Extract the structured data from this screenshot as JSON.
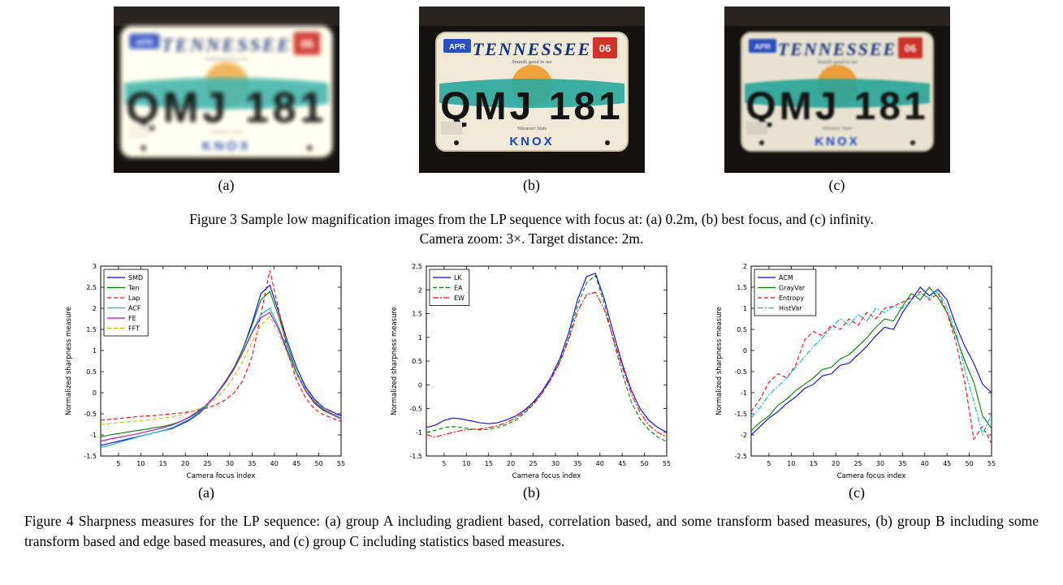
{
  "plate": {
    "month": "APR",
    "state": "TENNESSEE",
    "slogan": "Sounds good to me",
    "number": "QMJ 181",
    "volunteer": "Volunteer State",
    "county": "KNOX",
    "year": "06"
  },
  "figure3": {
    "sublabels": [
      "(a)",
      "(b)",
      "(c)"
    ],
    "caption_line1": "Figure 3 Sample low magnification images from the LP sequence with focus at: (a) 0.2m, (b) best focus, and (c) infinity.",
    "caption_line2": "Camera zoom: 3×.  Target distance: 2m."
  },
  "figure4": {
    "sublabels": [
      "(a)",
      "(b)",
      "(c)"
    ],
    "caption": "Figure 4 Sharpness measures for the LP sequence: (a) group A including gradient based, correlation based, and some transform based measures, (b) group B including some transform based and edge based measures, and (c) group C including statistics based measures."
  },
  "colors": {
    "plate_blue": "#16337f",
    "sticker_blue": "#2b4fc0",
    "sticker_red": "#d23329",
    "swoosh_teal": "#2da89e",
    "sun_orange": "#f0a23b"
  },
  "chart_data": [
    {
      "type": "line",
      "xlabel": "Camera focus index",
      "ylabel": "Normalized sharpness measure",
      "xlim": [
        1,
        55
      ],
      "ylim": [
        -1.5,
        3
      ],
      "xticks": [
        5,
        10,
        15,
        20,
        25,
        30,
        35,
        40,
        45,
        50,
        55
      ],
      "yticks": [
        3,
        2.5,
        2,
        1.5,
        1,
        0.5,
        0,
        -0.5,
        -1,
        -1.5
      ],
      "legend_position": "top-left",
      "grid": false,
      "x": [
        1,
        3,
        5,
        7,
        9,
        11,
        13,
        15,
        17,
        19,
        21,
        23,
        25,
        27,
        29,
        31,
        33,
        35,
        37,
        39,
        41,
        43,
        45,
        47,
        49,
        51,
        53,
        55
      ],
      "series": [
        {
          "name": "SMD",
          "color": "#0000ff",
          "dash": "solid",
          "values": [
            -1.25,
            -1.2,
            -1.15,
            -1.1,
            -1.05,
            -1.0,
            -0.95,
            -0.9,
            -0.85,
            -0.75,
            -0.65,
            -0.5,
            -0.3,
            -0.05,
            0.25,
            0.6,
            1.05,
            1.65,
            2.35,
            2.55,
            1.9,
            1.2,
            0.6,
            0.15,
            -0.15,
            -0.35,
            -0.45,
            -0.55
          ]
        },
        {
          "name": "Ten",
          "color": "#008000",
          "dash": "solid",
          "values": [
            -1.05,
            -1.0,
            -0.97,
            -0.93,
            -0.9,
            -0.87,
            -0.83,
            -0.8,
            -0.75,
            -0.68,
            -0.58,
            -0.45,
            -0.27,
            -0.03,
            0.27,
            0.6,
            1.05,
            1.6,
            2.2,
            2.4,
            1.8,
            1.1,
            0.5,
            0.05,
            -0.25,
            -0.42,
            -0.52,
            -0.6
          ]
        },
        {
          "name": "Lap",
          "color": "#ff0000",
          "dash": "dashed",
          "values": [
            -0.65,
            -0.63,
            -0.61,
            -0.59,
            -0.57,
            -0.55,
            -0.54,
            -0.52,
            -0.5,
            -0.48,
            -0.45,
            -0.41,
            -0.36,
            -0.28,
            -0.17,
            0.0,
            0.3,
            0.85,
            1.85,
            2.9,
            1.95,
            0.95,
            0.3,
            -0.12,
            -0.38,
            -0.52,
            -0.6,
            -0.68
          ]
        },
        {
          "name": "ACF",
          "color": "#00bfbf",
          "dash": "solid",
          "values": [
            -1.3,
            -1.25,
            -1.18,
            -1.12,
            -1.06,
            -1.0,
            -0.95,
            -0.9,
            -0.83,
            -0.73,
            -0.62,
            -0.47,
            -0.29,
            -0.05,
            0.23,
            0.56,
            0.98,
            1.45,
            1.85,
            2.0,
            1.55,
            1.0,
            0.5,
            0.1,
            -0.18,
            -0.38,
            -0.5,
            -0.6
          ]
        },
        {
          "name": "FE",
          "color": "#bf00bf",
          "dash": "solid",
          "values": [
            -1.15,
            -1.1,
            -1.06,
            -1.02,
            -0.98,
            -0.93,
            -0.88,
            -0.83,
            -0.77,
            -0.68,
            -0.57,
            -0.43,
            -0.26,
            -0.03,
            0.25,
            0.57,
            0.97,
            1.42,
            1.78,
            1.9,
            1.5,
            0.95,
            0.45,
            0.05,
            -0.22,
            -0.4,
            -0.52,
            -0.62
          ]
        },
        {
          "name": "FFT",
          "color": "#bfbf00",
          "dash": "dashed",
          "values": [
            -0.75,
            -0.73,
            -0.71,
            -0.69,
            -0.67,
            -0.65,
            -0.63,
            -0.6,
            -0.57,
            -0.53,
            -0.47,
            -0.39,
            -0.28,
            -0.12,
            0.1,
            0.38,
            0.75,
            1.2,
            1.6,
            1.8,
            1.4,
            0.9,
            0.45,
            0.08,
            -0.18,
            -0.36,
            -0.48,
            -0.58
          ]
        }
      ]
    },
    {
      "type": "line",
      "xlabel": "Camera focus index",
      "ylabel": "Normalized sharpness measure",
      "xlim": [
        1,
        55
      ],
      "ylim": [
        -1.5,
        2.5
      ],
      "xticks": [
        5,
        10,
        15,
        20,
        25,
        30,
        35,
        40,
        45,
        50,
        55
      ],
      "yticks": [
        2.5,
        2,
        1.5,
        1,
        0.5,
        0,
        -0.5,
        -1,
        -1.5
      ],
      "legend_position": "top-left",
      "grid": false,
      "x": [
        1,
        3,
        5,
        7,
        9,
        11,
        13,
        15,
        17,
        19,
        21,
        23,
        25,
        27,
        29,
        31,
        33,
        35,
        37,
        39,
        41,
        43,
        45,
        47,
        49,
        51,
        53,
        55
      ],
      "series": [
        {
          "name": "LK",
          "color": "#0000ff",
          "dash": "solid",
          "values": [
            -0.9,
            -0.85,
            -0.75,
            -0.7,
            -0.72,
            -0.76,
            -0.8,
            -0.82,
            -0.8,
            -0.74,
            -0.66,
            -0.54,
            -0.37,
            -0.14,
            0.16,
            0.55,
            1.1,
            1.8,
            2.28,
            2.35,
            1.8,
            1.1,
            0.45,
            -0.1,
            -0.5,
            -0.75,
            -0.9,
            -1.0
          ]
        },
        {
          "name": "EA",
          "color": "#008000",
          "dash": "dashed",
          "values": [
            -1.0,
            -0.96,
            -0.9,
            -0.88,
            -0.9,
            -0.93,
            -0.95,
            -0.94,
            -0.9,
            -0.84,
            -0.75,
            -0.6,
            -0.42,
            -0.18,
            0.12,
            0.5,
            1.0,
            1.68,
            2.15,
            2.3,
            1.7,
            0.95,
            0.25,
            -0.35,
            -0.72,
            -0.95,
            -1.1,
            -1.2
          ]
        },
        {
          "name": "EW",
          "color": "#ff0000",
          "dash": "dashdot",
          "values": [
            -1.05,
            -1.1,
            -1.05,
            -1.0,
            -0.96,
            -0.94,
            -0.93,
            -0.9,
            -0.86,
            -0.8,
            -0.7,
            -0.57,
            -0.4,
            -0.17,
            0.12,
            0.47,
            0.95,
            1.55,
            1.9,
            1.95,
            1.58,
            0.98,
            0.38,
            -0.18,
            -0.58,
            -0.85,
            -1.0,
            -1.1
          ]
        }
      ]
    },
    {
      "type": "line",
      "xlabel": "Camera focus index",
      "ylabel": "Normalized sharpness measure",
      "xlim": [
        1,
        55
      ],
      "ylim": [
        -2.5,
        2
      ],
      "xticks": [
        5,
        10,
        15,
        20,
        25,
        30,
        35,
        40,
        45,
        50,
        55
      ],
      "yticks": [
        2,
        1.5,
        1,
        0.5,
        0,
        -0.5,
        -1,
        -1.5,
        -2,
        -2.5
      ],
      "legend_position": "top-left",
      "grid": false,
      "x": [
        1,
        3,
        5,
        7,
        9,
        11,
        13,
        15,
        17,
        19,
        21,
        23,
        25,
        27,
        29,
        31,
        33,
        35,
        37,
        39,
        41,
        43,
        45,
        47,
        49,
        51,
        53,
        55
      ],
      "series": [
        {
          "name": "ACM",
          "color": "#0000ff",
          "dash": "solid",
          "values": [
            -2.0,
            -1.8,
            -1.6,
            -1.45,
            -1.25,
            -1.1,
            -0.9,
            -0.8,
            -0.6,
            -0.55,
            -0.35,
            -0.3,
            -0.1,
            0.1,
            0.35,
            0.55,
            0.5,
            0.9,
            1.2,
            1.5,
            1.3,
            1.45,
            1.2,
            0.6,
            0.1,
            -0.3,
            -0.8,
            -1.0
          ]
        },
        {
          "name": "GrayVar",
          "color": "#008000",
          "dash": "solid",
          "values": [
            -1.9,
            -1.7,
            -1.55,
            -1.3,
            -1.15,
            -0.95,
            -0.8,
            -0.65,
            -0.45,
            -0.4,
            -0.2,
            -0.1,
            0.1,
            0.3,
            0.55,
            0.75,
            0.7,
            1.05,
            1.35,
            1.2,
            1.5,
            1.25,
            0.9,
            0.35,
            -0.25,
            -0.75,
            -1.55,
            -1.85
          ]
        },
        {
          "name": "Entropy",
          "color": "#ff0000",
          "dash": "dashed",
          "values": [
            -1.45,
            -1.15,
            -0.75,
            -0.55,
            -0.65,
            -0.35,
            0.25,
            0.45,
            0.35,
            0.6,
            0.5,
            0.75,
            0.6,
            0.9,
            0.75,
            1.0,
            1.05,
            1.15,
            1.25,
            1.4,
            1.2,
            1.35,
            0.9,
            0.2,
            -0.75,
            -2.1,
            -1.8,
            -2.2
          ]
        },
        {
          "name": "HistVar",
          "color": "#00bfbf",
          "dash": "dashdot",
          "values": [
            -1.6,
            -1.35,
            -1.05,
            -0.85,
            -0.65,
            -0.4,
            -0.15,
            0.1,
            0.3,
            0.55,
            0.75,
            0.6,
            0.85,
            0.7,
            1.0,
            0.9,
            1.05,
            1.0,
            1.2,
            1.35,
            1.25,
            1.4,
            1.0,
            0.45,
            -0.45,
            -1.2,
            -2.0,
            -1.5
          ]
        }
      ]
    }
  ]
}
